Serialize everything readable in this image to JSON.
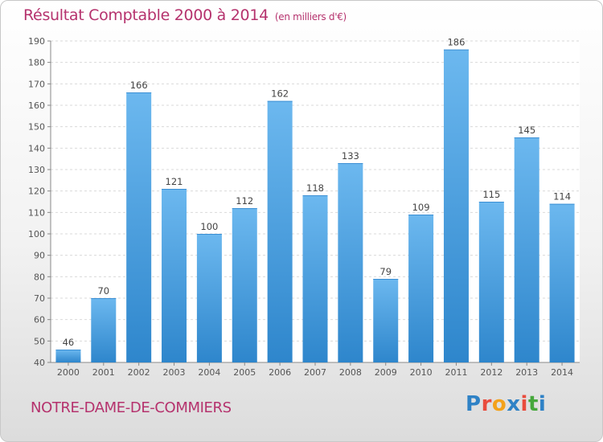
{
  "header": {
    "title": "Résultat Comptable 2000 à 2014",
    "unit": "(en milliers d'€)"
  },
  "footer": {
    "commune": "NOTRE-DAME-DE-COMMIERS",
    "logo": "Proxiti"
  },
  "colors": {
    "accent": "#b5326d",
    "bar_light": "#6cb8ef",
    "bar_dark": "#2e86cc",
    "logo_letters": [
      "#2f82c6",
      "#e94c3d",
      "#f3a21b",
      "#2f82c6",
      "#e94c3d",
      "#46a83c",
      "#2f82c6"
    ]
  },
  "chart_data": {
    "type": "bar",
    "categories": [
      "2000",
      "2001",
      "2002",
      "2003",
      "2004",
      "2005",
      "2006",
      "2007",
      "2008",
      "2009",
      "2010",
      "2011",
      "2012",
      "2013",
      "2014"
    ],
    "values": [
      46,
      70,
      166,
      121,
      100,
      112,
      162,
      118,
      133,
      79,
      109,
      186,
      115,
      145,
      114
    ],
    "ylim": [
      40,
      190
    ],
    "yticks": [
      40,
      50,
      60,
      70,
      80,
      90,
      100,
      110,
      120,
      130,
      140,
      150,
      160,
      170,
      180,
      190
    ],
    "grid": true,
    "data_labels": true
  }
}
